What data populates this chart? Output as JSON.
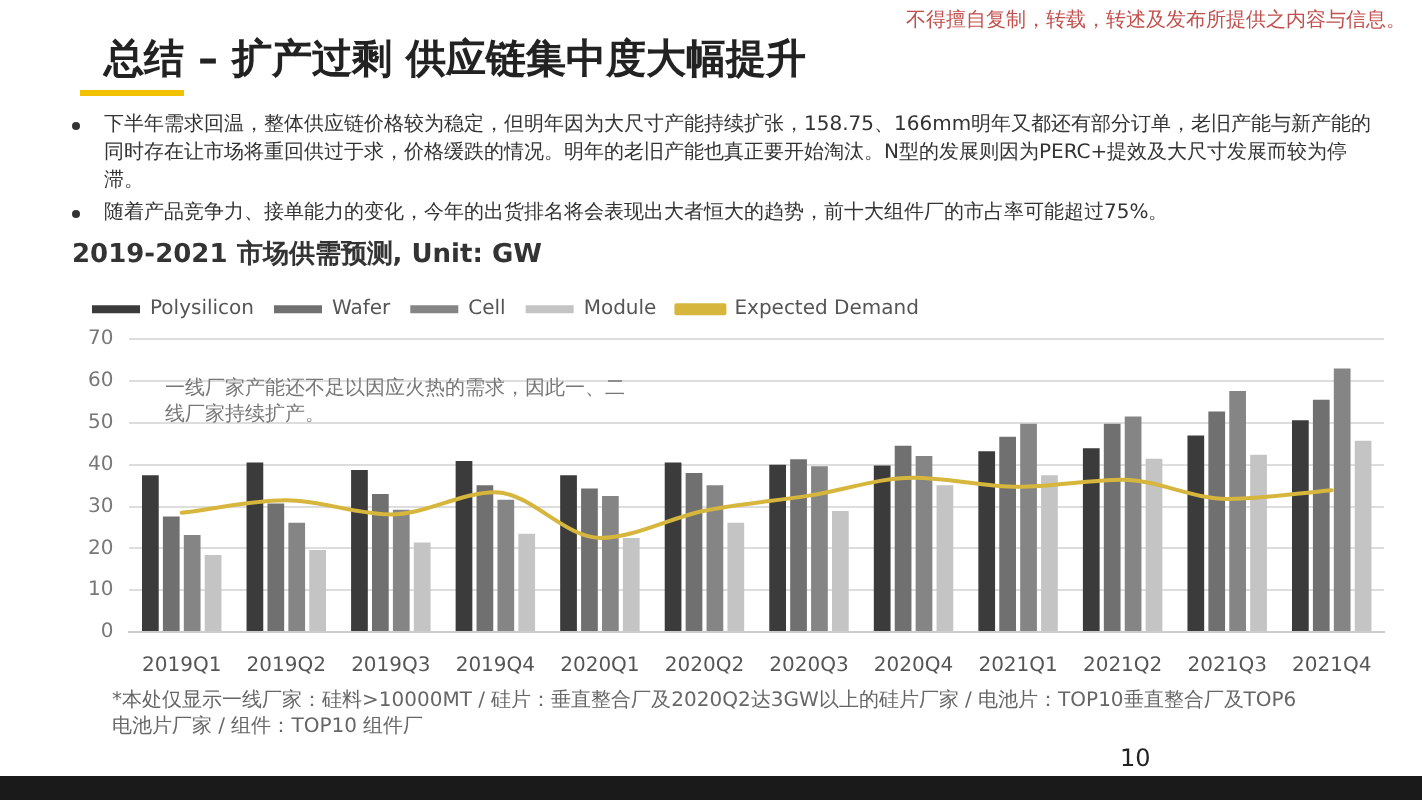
{
  "chart_data": {
    "type": "bar",
    "title": "总结 – 扩产过剩 供应链集中度大幅提升",
    "subtitle": "2019-2021 市场供需预测, Unit: GW",
    "categories": [
      "2019Q1",
      "2019Q2",
      "2019Q3",
      "2019Q4",
      "2020Q1",
      "2020Q2",
      "2020Q3",
      "2020Q4",
      "2021Q1",
      "2021Q2",
      "2021Q3",
      "2021Q4"
    ],
    "series": [
      {
        "name": "Polysilicon",
        "color": "#3b3b3b",
        "values": [
          37.5,
          40.5,
          38.7,
          40.9,
          37.5,
          40.5,
          40.0,
          39.8,
          43.2,
          43.9,
          47.0,
          50.6
        ]
      },
      {
        "name": "Wafer",
        "color": "#707070",
        "values": [
          27.6,
          30.7,
          33.0,
          35.1,
          34.3,
          38.0,
          41.3,
          44.5,
          46.7,
          49.8,
          52.7,
          55.5
        ]
      },
      {
        "name": "Cell",
        "color": "#858585",
        "values": [
          23.2,
          26.1,
          29.2,
          31.6,
          32.5,
          35.1,
          39.6,
          42.1,
          49.8,
          51.5,
          57.6,
          63.0
        ]
      },
      {
        "name": "Module",
        "color": "#c4c4c4",
        "values": [
          18.4,
          19.6,
          21.4,
          23.5,
          22.5,
          26.1,
          28.9,
          35.1,
          37.5,
          41.4,
          42.4,
          45.7
        ]
      },
      {
        "name": "Expected Demand",
        "type": "line",
        "color": "#d6b63c",
        "values": [
          28.5,
          31.5,
          28.1,
          33.4,
          22.5,
          29.0,
          32.6,
          36.9,
          34.7,
          36.4,
          31.8,
          33.9
        ]
      }
    ],
    "ylim": [
      0,
      70
    ],
    "yticks": [
      0,
      10,
      20,
      30,
      40,
      50,
      60,
      70
    ],
    "grid": "y",
    "legend": "top left",
    "marker": "none",
    "annotations": [
      "不得擅自复制，转载，转述及发布所提供之内容与信息。",
      "下半年需求回温，整体供应链价格较为稳定，但明年因为大尺寸产能持续扩张，158.75、166mm明年又都还有部分订单，老旧产能与新产能的同时存在让市场将重回供过于求，价格缓跌的情况。明年的老旧产能也真正要开始淘汰。N型的发展则因为PERC+提效及大尺寸发展而较为停滞。",
      "随着产品竞争力、接单能力的变化，今年的出货排名将会表现出大者恒大的趋势，前十大组件厂的市占率可能超过75%。",
      "一线厂家产能还不足以因应火热的需求，因此一、二线厂家持续扩产。",
      "*本处仅显示一线厂家：硅料>10000MT / 硅片：垂直整合厂及2020Q2达3GW以上的硅片厂家 / 电池片：TOP10垂直整合厂及TOP6电池片厂家 / 组件：TOP10 组件厂",
      "10"
    ]
  }
}
